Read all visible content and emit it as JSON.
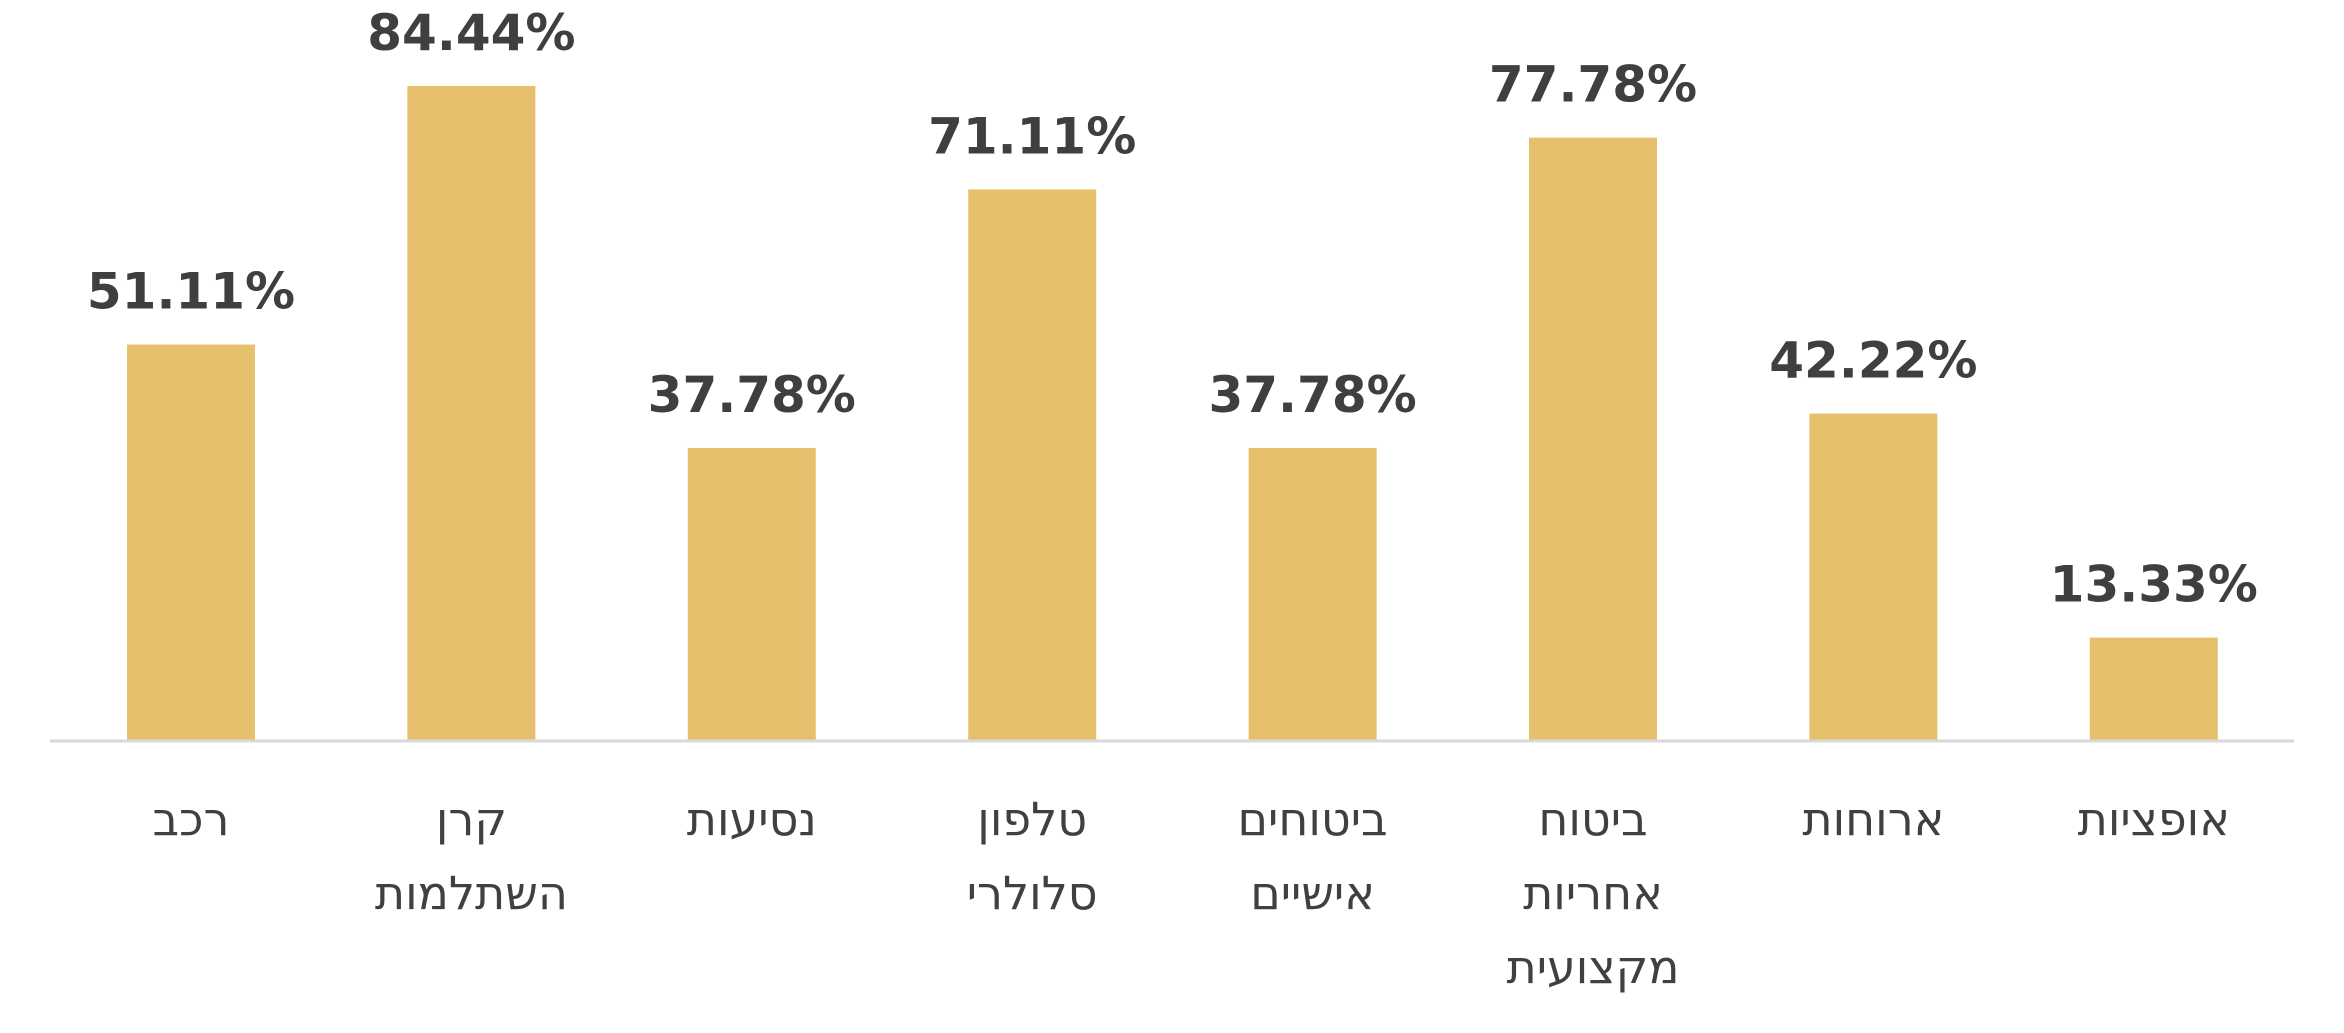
{
  "chart_data": {
    "type": "bar",
    "categories": [
      [
        "רכב"
      ],
      [
        "קרן",
        "השתלמות"
      ],
      [
        "נסיעות"
      ],
      [
        "טלפון",
        "סלולרי"
      ],
      [
        "ביטוחים",
        "אישיים"
      ],
      [
        "ביטוח",
        "אחריות",
        "מקצועית"
      ],
      [
        "ארוחות"
      ],
      [
        "אופציות"
      ]
    ],
    "values": [
      51.11,
      84.44,
      37.78,
      71.11,
      37.78,
      77.78,
      42.22,
      13.33
    ],
    "value_labels": [
      "51.11%",
      "84.44%",
      "37.78%",
      "71.11%",
      "37.78%",
      "77.78%",
      "42.22%",
      "13.33%"
    ],
    "unit": "%",
    "bar_color": "#e6c06c",
    "label_color": "#3f3f3f",
    "grid": false,
    "legend": "none"
  }
}
